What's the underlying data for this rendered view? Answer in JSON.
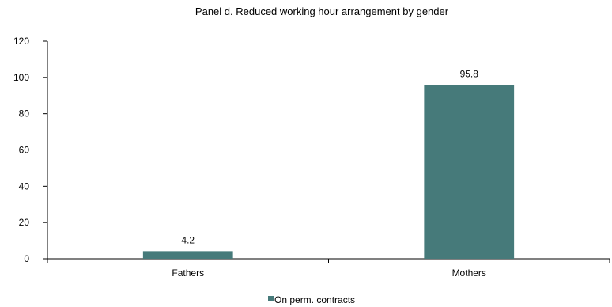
{
  "chart_data": {
    "type": "bar",
    "title": "Panel d. Reduced working hour arrangement by gender",
    "xlabel": "",
    "ylabel": "",
    "categories": [
      "Fathers",
      "Mothers"
    ],
    "series": [
      {
        "name": "On perm. contracts",
        "values": [
          4.2,
          95.8
        ],
        "color": "#467a7a"
      }
    ],
    "data_labels": [
      "4.2",
      "95.8"
    ],
    "ylim": [
      0,
      120
    ],
    "yticks": [
      0,
      20,
      40,
      60,
      80,
      100,
      120
    ],
    "grid": false,
    "legend_position": "bottom"
  }
}
